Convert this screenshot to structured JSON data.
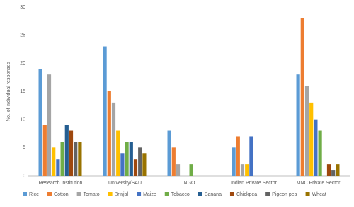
{
  "chart_data": {
    "type": "bar",
    "y_label": "No. of individual responses",
    "categories": [
      "Research Institution",
      "University/SAU",
      "NGO",
      "Indian Private Sector",
      "MNC Private Sector"
    ],
    "series": [
      {
        "name": "Rice",
        "color": "#5b9bd5",
        "values": [
          19,
          23,
          8,
          5,
          18
        ]
      },
      {
        "name": "Cotton",
        "color": "#ed7d31",
        "values": [
          9,
          15,
          5,
          7,
          28
        ]
      },
      {
        "name": "Tomato",
        "color": "#a5a5a5",
        "values": [
          18,
          13,
          2,
          2,
          16
        ]
      },
      {
        "name": "Brinjal",
        "color": "#ffc000",
        "values": [
          5,
          8,
          0,
          2,
          13
        ]
      },
      {
        "name": "Maize",
        "color": "#4472c4",
        "values": [
          3,
          4,
          0,
          7,
          10
        ]
      },
      {
        "name": "Tobacco",
        "color": "#70ad47",
        "values": [
          6,
          6,
          2,
          0,
          8
        ]
      },
      {
        "name": "Banana",
        "color": "#255e91",
        "values": [
          9,
          6,
          0,
          0,
          0
        ]
      },
      {
        "name": "Chickpea",
        "color": "#9e480e",
        "values": [
          8,
          3,
          0,
          0,
          2
        ]
      },
      {
        "name": "Pigeon pea",
        "color": "#636363",
        "values": [
          6,
          5,
          0,
          0,
          1
        ]
      },
      {
        "name": "Wheat",
        "color": "#997300",
        "values": [
          6,
          4,
          0,
          0,
          2
        ]
      }
    ],
    "ylim": [
      0,
      30
    ],
    "yticks": [
      0,
      5,
      10,
      15,
      20,
      25,
      30
    ],
    "grid": false,
    "legend": "bottom"
  }
}
